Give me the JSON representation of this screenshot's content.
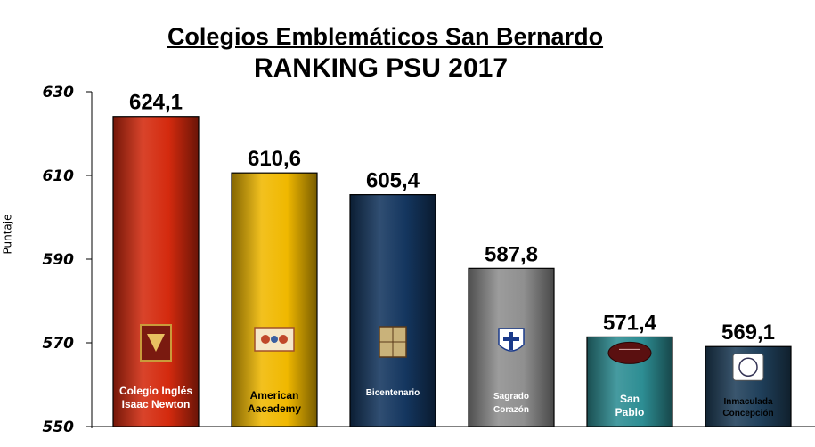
{
  "chart_data": {
    "type": "bar",
    "title": "Colegios Emblemáticos San Bernardo",
    "subtitle": "RANKING PSU 2017",
    "xlabel": "",
    "ylabel": "Puntaje",
    "ylim": [
      550,
      630
    ],
    "yticks": [
      "550",
      "570",
      "590",
      "610",
      "630"
    ],
    "grid": false,
    "legend": "none",
    "categories": [
      [
        "Colegio Inglés",
        "Isaac Newton"
      ],
      [
        "American",
        "Aacademy"
      ],
      [
        "Bicentenario"
      ],
      [
        "Sagrado",
        "Corazón"
      ],
      [
        "San",
        "Pablo"
      ],
      [
        "Inmaculada",
        "Concepción"
      ]
    ],
    "values": [
      624.1,
      610.6,
      605.4,
      587.8,
      571.4,
      569.1
    ],
    "value_labels": [
      "624,1",
      "610,6",
      "605,4",
      "587,8",
      "571,4",
      "569,1"
    ],
    "colors": [
      "#d42a0e",
      "#f0b800",
      "#14365f",
      "#8f8f8f",
      "#2d8d93",
      "#1f3f5a"
    ],
    "logos": [
      "crest-icon",
      "shield-icon",
      "lnbe-emblem-icon",
      "cross-shield-icon",
      "seal-icon",
      "ic-emblem-icon"
    ]
  }
}
